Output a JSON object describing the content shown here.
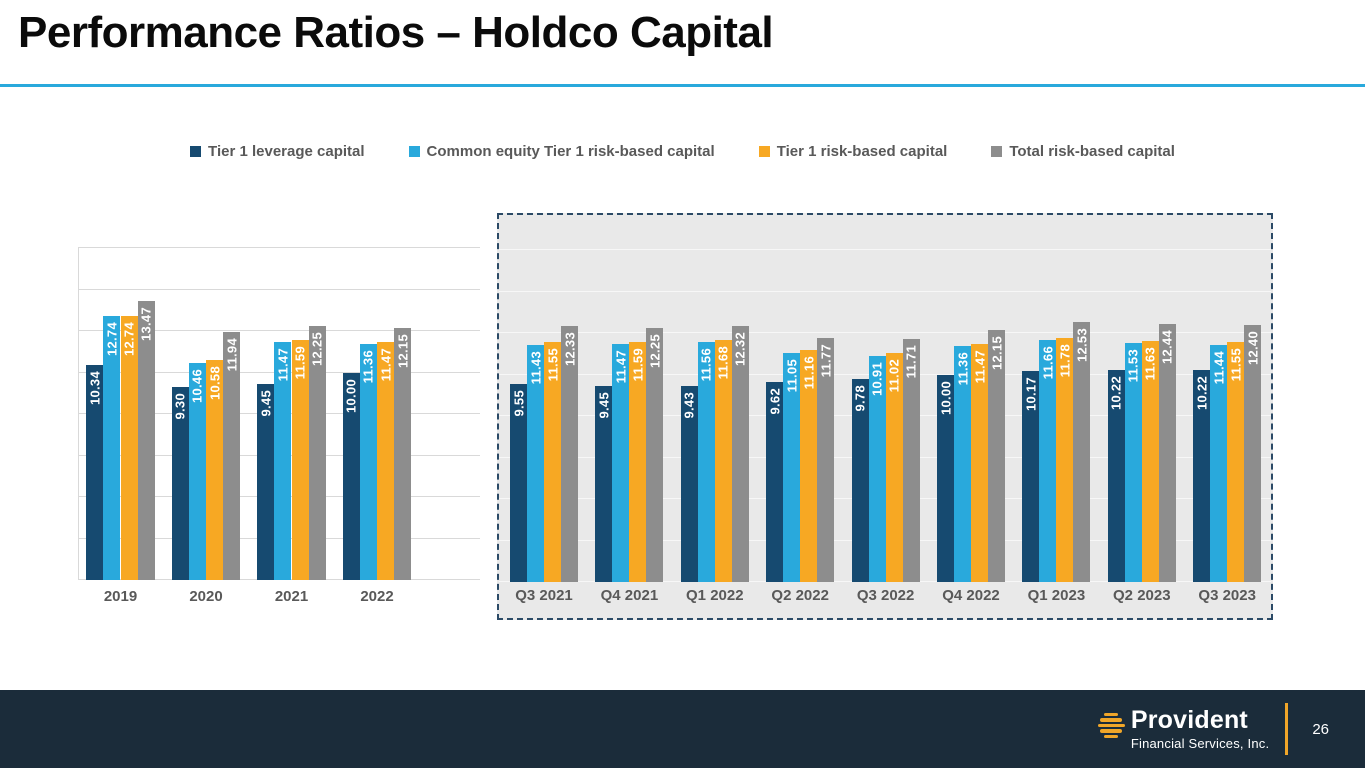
{
  "slide": {
    "title": "Performance Ratios – Holdco Capital"
  },
  "legend": [
    {
      "label": "Tier 1 leverage capital",
      "color": "#164A70"
    },
    {
      "label": "Common equity Tier 1 risk-based capital",
      "color": "#29A9DC"
    },
    {
      "label": "Tier 1 risk-based capital",
      "color": "#F7A823"
    },
    {
      "label": "Total risk-based capital",
      "color": "#8D8D8D"
    }
  ],
  "chart_data": [
    {
      "type": "bar",
      "title": "Annual Holdco capital ratios",
      "categories": [
        "2019",
        "2020",
        "2021",
        "2022"
      ],
      "series": [
        {
          "name": "Tier 1 leverage capital",
          "color": "#164A70",
          "values": [
            10.34,
            9.3,
            9.45,
            10.0
          ]
        },
        {
          "name": "Common equity Tier 1 risk-based capital",
          "color": "#29A9DC",
          "values": [
            12.74,
            10.46,
            11.47,
            11.36
          ]
        },
        {
          "name": "Tier 1 risk-based capital",
          "color": "#F7A823",
          "values": [
            12.74,
            10.58,
            11.59,
            11.47
          ]
        },
        {
          "name": "Total risk-based capital",
          "color": "#8D8D8D",
          "values": [
            13.47,
            11.94,
            12.25,
            12.15
          ]
        }
      ],
      "xlabel": "",
      "ylabel": "",
      "ylim": [
        0,
        16
      ],
      "gridline_step": 2,
      "grid": true,
      "data_labels": true,
      "data_label_rotation": 90,
      "legend_position": "top",
      "plot_background": "#FFFFFF"
    },
    {
      "type": "bar",
      "title": "Quarterly Holdco capital ratios (highlighted)",
      "categories": [
        "Q3 2021",
        "Q4 2021",
        "Q1 2022",
        "Q2 2022",
        "Q3 2022",
        "Q4 2022",
        "Q1 2023",
        "Q2 2023",
        "Q3 2023"
      ],
      "series": [
        {
          "name": "Tier 1 leverage capital",
          "color": "#164A70",
          "values": [
            9.55,
            9.45,
            9.43,
            9.62,
            9.78,
            10.0,
            10.17,
            10.22,
            10.22
          ]
        },
        {
          "name": "Common equity Tier 1 risk-based capital",
          "color": "#29A9DC",
          "values": [
            11.43,
            11.47,
            11.56,
            11.05,
            10.91,
            11.36,
            11.66,
            11.53,
            11.44
          ]
        },
        {
          "name": "Tier 1 risk-based capital",
          "color": "#F7A823",
          "values": [
            11.55,
            11.59,
            11.68,
            11.16,
            11.02,
            11.47,
            11.78,
            11.63,
            11.55
          ]
        },
        {
          "name": "Total risk-based capital",
          "color": "#8D8D8D",
          "values": [
            12.33,
            12.25,
            12.32,
            11.77,
            11.71,
            12.15,
            12.53,
            12.44,
            12.4
          ]
        }
      ],
      "xlabel": "",
      "ylabel": "",
      "ylim": [
        0,
        17.7
      ],
      "gridline_step": 2,
      "grid": true,
      "data_labels": true,
      "data_label_rotation": 90,
      "legend_position": "top",
      "plot_background": "#E9E9E9",
      "highlight_box": true
    }
  ],
  "footer": {
    "logo_name": "Provident",
    "logo_subtitle": "Financial Services, Inc.",
    "page_number": "26"
  },
  "colors": {
    "accent_rule": "#29A9DC",
    "footer_bg": "#1B2C3A",
    "axis_text": "#595959",
    "gridline": "#D9D9D9",
    "quarterly_plot_bg": "#E9E9E9",
    "quarterly_border": "#2B4A66",
    "logo_gold": "#F0A629",
    "bar_label_text": "#FFFFFF"
  }
}
